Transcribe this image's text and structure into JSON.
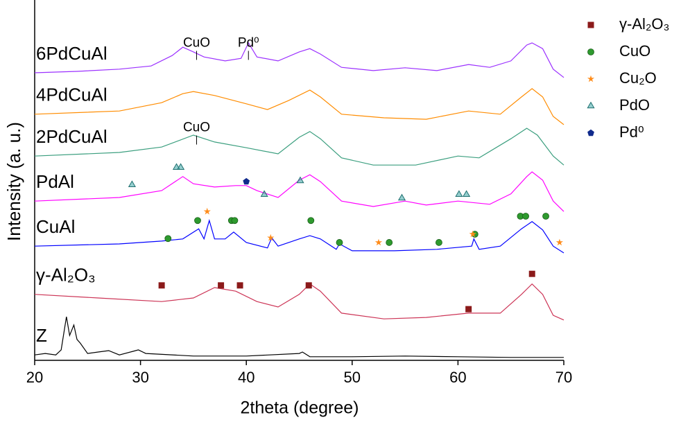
{
  "chart_data": {
    "type": "line",
    "xlabel": "2theta (degree)",
    "ylabel": "Intensity (a. u.)",
    "xlim": [
      20,
      70
    ],
    "xticks": [
      20,
      30,
      40,
      50,
      60,
      70
    ],
    "ylim": [
      0,
      100
    ],
    "series": [
      {
        "name": "6PdCuAl",
        "color": "#9b30ff",
        "x": [
          20,
          24,
          28,
          31,
          33,
          34,
          35,
          36,
          38,
          39.5,
          40.2,
          41,
          43,
          45,
          46,
          47,
          49,
          52,
          55,
          58,
          61,
          63,
          65,
          66.5,
          67,
          68,
          69,
          70
        ],
        "values": [
          79.8,
          80.2,
          80.8,
          81.7,
          84.6,
          86.9,
          85.6,
          84.2,
          83.1,
          83.8,
          88.1,
          84.2,
          83.1,
          85.6,
          86.5,
          85,
          81.3,
          80.4,
          81.2,
          80.4,
          82.1,
          81.3,
          83.1,
          87.5,
          88.1,
          86.5,
          80.8,
          78.5
        ]
      },
      {
        "name": "4PdCuAl",
        "color": "#ff8c00",
        "x": [
          20,
          28,
          32,
          34,
          35,
          37,
          40,
          42,
          44,
          46,
          47,
          49,
          53,
          57,
          61,
          64,
          66,
          67,
          68,
          69,
          70
        ],
        "values": [
          68.3,
          69.2,
          71.5,
          74,
          74.6,
          73.5,
          71.2,
          69.6,
          72.1,
          75,
          73.1,
          68.3,
          67.3,
          66.9,
          69.2,
          68.3,
          73.1,
          75.4,
          73.1,
          67.7,
          65.4
        ]
      },
      {
        "name": "2PdCuAl",
        "color": "#3a9e7e",
        "x": [
          20,
          28,
          32,
          35,
          37,
          40,
          43,
          45,
          46,
          47,
          49,
          52,
          56,
          60,
          62,
          65,
          66.5,
          67.5,
          69,
          70
        ],
        "values": [
          56.7,
          57.7,
          59.2,
          62.5,
          60.6,
          59,
          57.3,
          61.9,
          63.5,
          61.5,
          56.2,
          54.2,
          54.2,
          56.7,
          56.2,
          61.5,
          64.4,
          62.5,
          56.7,
          54.2
        ]
      },
      {
        "name": "PdAl",
        "color": "#ff00ff",
        "x": [
          20,
          28,
          32,
          34,
          35,
          37,
          39,
          40,
          41,
          43,
          45,
          46,
          47,
          49,
          52,
          55,
          57,
          60,
          63,
          65,
          66.5,
          67,
          68,
          69,
          70
        ],
        "values": [
          44.2,
          45.2,
          47.1,
          51,
          49,
          48.1,
          48.5,
          48.5,
          47.1,
          45.2,
          50,
          51.5,
          49.6,
          44.2,
          42.7,
          44.2,
          43.1,
          44.2,
          43.3,
          46.2,
          51,
          52.3,
          50,
          44.2,
          41.3
        ]
      },
      {
        "name": "CuAl",
        "color": "#0000ff",
        "x": [
          20,
          28,
          32,
          34,
          35.5,
          36,
          36.5,
          37,
          38,
          38.8,
          40,
          42,
          42.4,
          43,
          45,
          46,
          47,
          48.5,
          48.8,
          50,
          54,
          58,
          61.3,
          61.5,
          62,
          64,
          66,
          67,
          68,
          69,
          70
        ],
        "values": [
          31.7,
          32.3,
          33.1,
          33.7,
          36.5,
          33.7,
          38.8,
          33.7,
          33.7,
          35.6,
          32.7,
          31.2,
          34,
          31.7,
          33.7,
          34.6,
          33.7,
          30.8,
          32.3,
          30.4,
          30.4,
          30.8,
          31.7,
          33.7,
          30.8,
          31.7,
          36.5,
          38.5,
          36.2,
          31.7,
          29.8
        ]
      },
      {
        "name": "γ-Al₂O₃",
        "color": "#cc3355",
        "x": [
          20,
          26,
          32,
          35,
          37,
          39,
          41,
          43,
          45,
          46,
          47,
          49,
          53,
          57,
          61,
          64,
          66,
          67,
          68,
          69,
          70
        ],
        "values": [
          18.3,
          17.3,
          16.3,
          17.3,
          20.2,
          19.2,
          16.3,
          14.8,
          18.3,
          21.2,
          19.2,
          13.1,
          11.5,
          11.9,
          13.1,
          13.1,
          18.3,
          21.2,
          18.3,
          12.5,
          11.2
        ]
      },
      {
        "name": "Z",
        "color": "#000000",
        "x": [
          20,
          21,
          22,
          22.5,
          23,
          23.3,
          23.7,
          24,
          24.3,
          25,
          26,
          27,
          28,
          29.3,
          29.8,
          30.5,
          35,
          40,
          45,
          45.3,
          46,
          50,
          55,
          60,
          65,
          70
        ],
        "values": [
          1.5,
          1.9,
          1.5,
          2.9,
          12.1,
          6.9,
          9.8,
          5.8,
          4.8,
          1.9,
          2.3,
          2.7,
          1.5,
          2.5,
          2.9,
          1.9,
          1.2,
          1.2,
          1.9,
          2.3,
          1,
          1,
          1.2,
          1,
          0.8,
          0.8
        ]
      }
    ],
    "phases": [
      {
        "name": "γ-Al₂O₃",
        "color": "#8b1a1a",
        "marker": "square",
        "x": [
          32,
          37.6,
          39.4,
          45.9,
          61,
          67
        ],
        "values": [
          20.8,
          20.8,
          20.8,
          20.8,
          14.2,
          24
        ]
      },
      {
        "name": "CuO",
        "color": "#2e9a2e",
        "marker": "circle",
        "x": [
          32.6,
          35.4,
          38.6,
          38.9,
          46.1,
          48.8,
          53.5,
          58.2,
          61.6,
          65.9,
          66.4,
          68.3
        ],
        "values": [
          33.8,
          38.8,
          38.8,
          38.8,
          38.8,
          32.7,
          32.7,
          32.7,
          35,
          40,
          40,
          40
        ]
      },
      {
        "name": "Cu₂O",
        "color": "#ff8c1a",
        "marker": "star",
        "x": [
          36.3,
          42.3,
          52.5,
          61.4,
          69.6
        ],
        "values": [
          41.3,
          34,
          32.7,
          35,
          32.7
        ]
      },
      {
        "name": "PdO",
        "color": "#2a9d9d",
        "marker": "triangle",
        "x": [
          29.2,
          33.4,
          33.8,
          41.7,
          45.1,
          54.7,
          60.1,
          60.8
        ],
        "values": [
          48.7,
          53.5,
          53.5,
          46,
          49.8,
          45,
          46,
          46
        ]
      },
      {
        "name": "Pd⁰",
        "color": "#102a8c",
        "marker": "pentagon",
        "x": [
          40
        ],
        "values": [
          49.6
        ]
      }
    ],
    "annotations": [
      {
        "text": "CuO",
        "x": 35.3,
        "y": 88
      },
      {
        "text": "Pd⁰",
        "x": 40.2,
        "y": 88
      },
      {
        "text": "CuO",
        "x": 35.3,
        "y": 64.5
      }
    ]
  }
}
